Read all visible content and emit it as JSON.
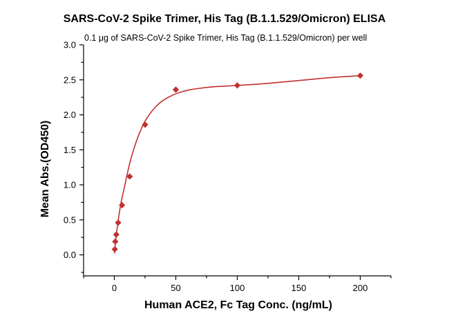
{
  "chart_data": {
    "type": "scatter",
    "title": "SARS-CoV-2 Spike Trimer, His Tag (B.1.1.529/Omicron) ELISA",
    "subtitle": "0.1 μg of SARS-CoV-2 Spike Trimer, His Tag (B.1.1.529/Omicron) per well",
    "xlabel": "Human ACE2, Fc Tag Conc. (ng/mL)",
    "ylabel": "Mean Abs.(OD450)",
    "xlim": [
      -25,
      225
    ],
    "ylim": [
      -0.3,
      3.0
    ],
    "x_ticks": [
      0,
      50,
      100,
      150,
      200
    ],
    "y_ticks": [
      0.0,
      0.5,
      1.0,
      1.5,
      2.0,
      2.5,
      3.0
    ],
    "y_tick_labels": [
      "0.0",
      "0.5",
      "1.0",
      "1.5",
      "2.0",
      "2.5",
      "3.0"
    ],
    "grid": false,
    "series_color": "#c0302f",
    "marker": "diamond",
    "fit": "sigmoidal curve",
    "points": [
      {
        "x": 0.39,
        "y": 0.08
      },
      {
        "x": 0.78,
        "y": 0.19
      },
      {
        "x": 1.56,
        "y": 0.29
      },
      {
        "x": 3.13,
        "y": 0.46
      },
      {
        "x": 6.25,
        "y": 0.71
      },
      {
        "x": 12.5,
        "y": 1.12
      },
      {
        "x": 25,
        "y": 1.86
      },
      {
        "x": 50,
        "y": 2.36
      },
      {
        "x": 100,
        "y": 2.42
      },
      {
        "x": 200,
        "y": 2.56
      }
    ],
    "curve": [
      {
        "x": 0,
        "y": 0.02
      },
      {
        "x": 2,
        "y": 0.34
      },
      {
        "x": 5,
        "y": 0.7
      },
      {
        "x": 8,
        "y": 0.95
      },
      {
        "x": 12,
        "y": 1.27
      },
      {
        "x": 16,
        "y": 1.52
      },
      {
        "x": 20,
        "y": 1.72
      },
      {
        "x": 25,
        "y": 1.91
      },
      {
        "x": 30,
        "y": 2.04
      },
      {
        "x": 35,
        "y": 2.14
      },
      {
        "x": 40,
        "y": 2.21
      },
      {
        "x": 45,
        "y": 2.26
      },
      {
        "x": 50,
        "y": 2.3
      },
      {
        "x": 55,
        "y": 2.33
      },
      {
        "x": 62,
        "y": 2.36
      },
      {
        "x": 70,
        "y": 2.38
      },
      {
        "x": 80,
        "y": 2.4
      },
      {
        "x": 90,
        "y": 2.41
      },
      {
        "x": 100,
        "y": 2.42
      },
      {
        "x": 125,
        "y": 2.45
      },
      {
        "x": 150,
        "y": 2.49
      },
      {
        "x": 175,
        "y": 2.53
      },
      {
        "x": 200,
        "y": 2.56
      }
    ]
  }
}
